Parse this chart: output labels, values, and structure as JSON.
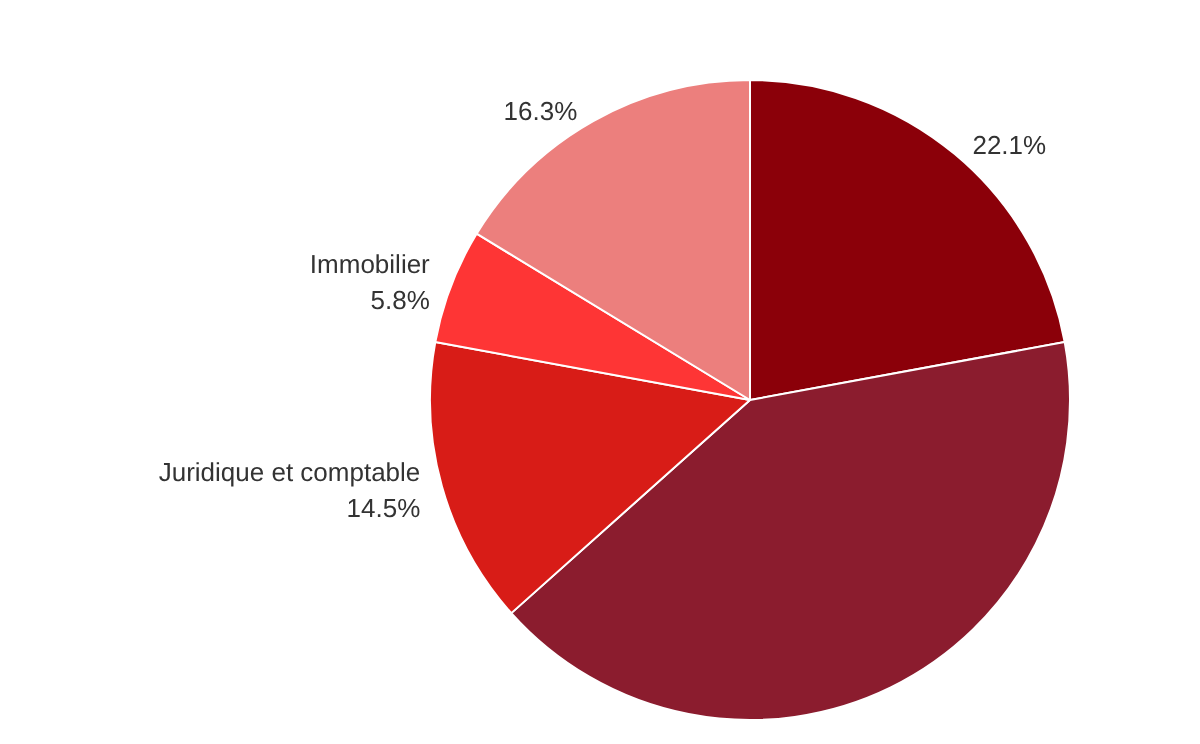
{
  "chart_data": {
    "type": "pie",
    "categories": [
      null,
      null,
      "Juridique et comptable",
      "Immobilier",
      null
    ],
    "values": [
      22.1,
      41.3,
      14.5,
      5.8,
      16.3
    ],
    "colors": [
      "#8b0009",
      "#8b1c2e",
      "#d81c17",
      "#fe3535",
      "#ec7f7d"
    ],
    "value_labels": [
      "22.1%",
      null,
      "14.5%",
      "5.8%",
      "16.3%"
    ],
    "legend": false
  }
}
